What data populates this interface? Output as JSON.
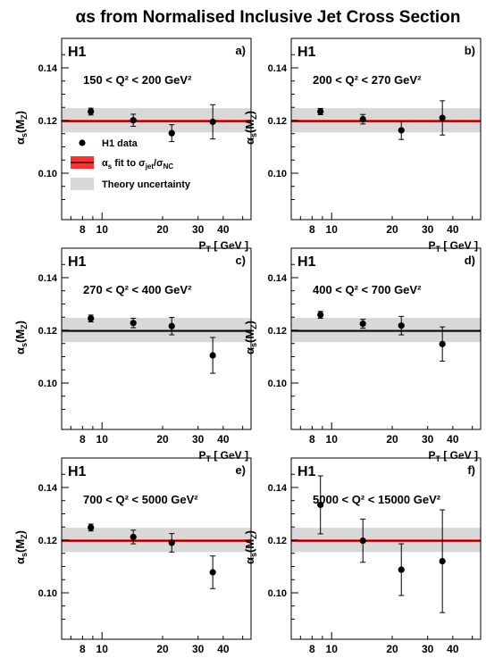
{
  "title": "αs from Normalised Inclusive Jet Cross Section",
  "chart_data": [
    {
      "type": "scatter",
      "panel": "a)",
      "experiment": "H1",
      "range": "150 < Q² < 200 GeV²",
      "points": [
        {
          "x": 8.8,
          "y": 0.1234,
          "err": 0.0013
        },
        {
          "x": 14.3,
          "y": 0.1201,
          "err": 0.0023
        },
        {
          "x": 22.2,
          "y": 0.1152,
          "err": 0.0032
        },
        {
          "x": 35.5,
          "y": 0.1195,
          "err": 0.0065
        }
      ],
      "fit": 0.1198,
      "fit_band": [
        0.1193,
        0.1203
      ],
      "theory_band": [
        0.1155,
        0.1247
      ]
    },
    {
      "type": "scatter",
      "panel": "b)",
      "experiment": "H1",
      "range": "200 < Q² < 270 GeV²",
      "points": [
        {
          "x": 8.8,
          "y": 0.1234,
          "err": 0.0012
        },
        {
          "x": 14.3,
          "y": 0.1205,
          "err": 0.0018
        },
        {
          "x": 22.2,
          "y": 0.1163,
          "err": 0.0035
        },
        {
          "x": 35.5,
          "y": 0.121,
          "err": 0.0065
        }
      ],
      "fit": 0.1198,
      "fit_band": [
        0.1193,
        0.1203
      ],
      "theory_band": [
        0.1155,
        0.1247
      ]
    },
    {
      "type": "scatter",
      "panel": "c)",
      "experiment": "H1",
      "range": "270 < Q² < 400 GeV²",
      "points": [
        {
          "x": 8.8,
          "y": 0.1245,
          "err": 0.0013
        },
        {
          "x": 14.3,
          "y": 0.1228,
          "err": 0.0018
        },
        {
          "x": 22.2,
          "y": 0.1216,
          "err": 0.0033
        },
        {
          "x": 35.5,
          "y": 0.1105,
          "err": 0.0068
        }
      ],
      "fit": 0.1198,
      "fit_band": [
        0.1193,
        0.1203
      ],
      "theory_band": [
        0.1155,
        0.1247
      ]
    },
    {
      "type": "scatter",
      "panel": "d)",
      "experiment": "H1",
      "range": "400 < Q² < 700 GeV²",
      "points": [
        {
          "x": 8.8,
          "y": 0.1259,
          "err": 0.0013
        },
        {
          "x": 14.3,
          "y": 0.1225,
          "err": 0.0017
        },
        {
          "x": 22.2,
          "y": 0.1218,
          "err": 0.0035
        },
        {
          "x": 35.5,
          "y": 0.1148,
          "err": 0.0065
        }
      ],
      "fit": 0.1198,
      "fit_band": [
        0.1193,
        0.1203
      ],
      "theory_band": [
        0.1155,
        0.1247
      ]
    },
    {
      "type": "scatter",
      "panel": "e)",
      "experiment": "H1",
      "range": "700 < Q² < 5000 GeV²",
      "points": [
        {
          "x": 8.8,
          "y": 0.1248,
          "err": 0.0013
        },
        {
          "x": 14.3,
          "y": 0.1212,
          "err": 0.0026
        },
        {
          "x": 22.2,
          "y": 0.119,
          "err": 0.0035
        },
        {
          "x": 35.5,
          "y": 0.1078,
          "err": 0.0062
        }
      ],
      "fit": 0.1198,
      "fit_band": [
        0.1193,
        0.1203
      ],
      "theory_band": [
        0.1155,
        0.1247
      ]
    },
    {
      "type": "scatter",
      "panel": "f)",
      "experiment": "H1",
      "range": "5000 < Q² < 15000 GeV²",
      "points": [
        {
          "x": 8.8,
          "y": 0.1334,
          "err": 0.011
        },
        {
          "x": 14.3,
          "y": 0.1198,
          "err": 0.0082
        },
        {
          "x": 22.2,
          "y": 0.1088,
          "err": 0.0098
        },
        {
          "x": 35.5,
          "y": 0.112,
          "err": 0.0195
        }
      ],
      "fit": 0.1198,
      "fit_band": [
        0.1193,
        0.1203
      ],
      "theory_band": [
        0.1155,
        0.1247
      ]
    }
  ],
  "axes": {
    "xscale": "log",
    "xlim": [
      6.3,
      55
    ],
    "ylim": [
      0.09,
      0.15
    ],
    "xticks": [
      "8",
      "10",
      "20",
      "30",
      "40"
    ],
    "yticks": [
      "0.10",
      "0.12",
      "0.14"
    ],
    "xlabel_main": "P",
    "xlabel_sub": "T",
    "xlabel_unit": "[ GeV ]",
    "ylabel_main": "α",
    "ylabel_sub": "s",
    "ylabel_arg": "(M",
    "ylabel_arg_sub": "Z",
    "ylabel_close": ")"
  },
  "legend": {
    "data_label": "H1 data",
    "fit_label_main": "α",
    "fit_label_sub": "s",
    "fit_label_mid": " fit to σ",
    "fit_label_jet": "jet",
    "fit_label_slash": "/σ",
    "fit_label_nc": "NC",
    "theory_label": "Theory uncertainty"
  },
  "colors": {
    "fit_line": "#000000",
    "fit_band": "#ff3030",
    "theory_band": "#d8d8d8",
    "marker": "#000000"
  }
}
